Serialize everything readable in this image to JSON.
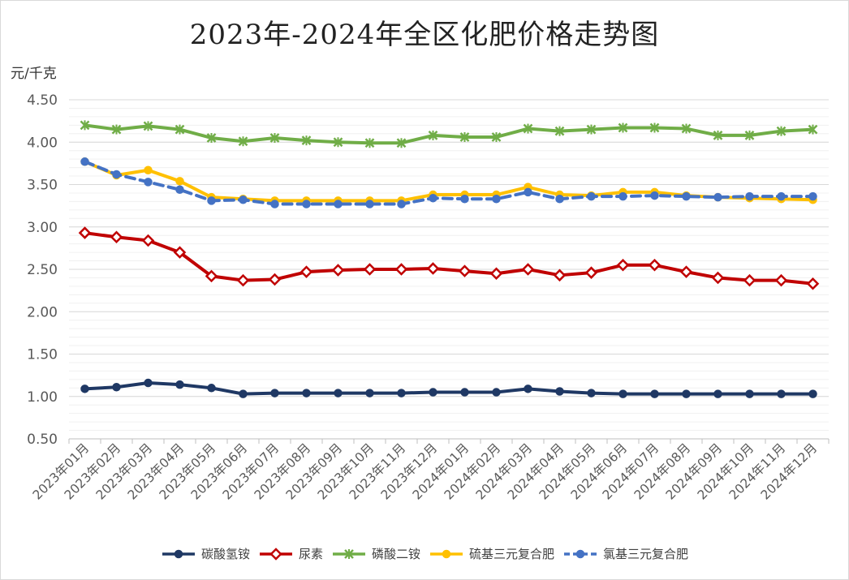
{
  "chart_data": {
    "type": "line",
    "title": "2023年-2024年全区化肥价格走势图",
    "ylabel": "元/千克",
    "xlabel": "",
    "ylim": [
      0.5,
      4.5
    ],
    "ytick_step": 0.5,
    "yticks": [
      "0.50",
      "1.00",
      "1.50",
      "2.00",
      "2.50",
      "3.00",
      "3.50",
      "4.00",
      "4.50"
    ],
    "grid": true,
    "legend_position": "bottom",
    "categories": [
      "2023年01月",
      "2023年02月",
      "2023年03月",
      "2023年04月",
      "2023年05月",
      "2023年06月",
      "2023年07月",
      "2023年08月",
      "2023年09月",
      "2023年10月",
      "2023年11月",
      "2023年12月",
      "2024年01月",
      "2024年02月",
      "2024年03月",
      "2024年04月",
      "2024年05月",
      "2024年06月",
      "2024年07月",
      "2024年08月",
      "2024年09月",
      "2024年10月",
      "2024年11月",
      "2024年12月"
    ],
    "series": [
      {
        "name": "碳酸氢铵",
        "color": "#1f3864",
        "marker": "circle",
        "dash": false,
        "values": [
          1.09,
          1.11,
          1.16,
          1.14,
          1.1,
          1.03,
          1.04,
          1.04,
          1.04,
          1.04,
          1.04,
          1.05,
          1.05,
          1.05,
          1.09,
          1.06,
          1.04,
          1.03,
          1.03,
          1.03,
          1.03,
          1.03,
          1.03,
          1.03
        ]
      },
      {
        "name": "尿素",
        "color": "#c00000",
        "marker": "diamond",
        "dash": false,
        "values": [
          2.93,
          2.88,
          2.84,
          2.7,
          2.42,
          2.37,
          2.38,
          2.47,
          2.49,
          2.5,
          2.5,
          2.51,
          2.48,
          2.45,
          2.5,
          2.43,
          2.46,
          2.55,
          2.55,
          2.47,
          2.4,
          2.37,
          2.37,
          2.33
        ]
      },
      {
        "name": "磷酸二铵",
        "color": "#70ad47",
        "marker": "star",
        "dash": false,
        "values": [
          4.2,
          4.15,
          4.19,
          4.15,
          4.05,
          4.01,
          4.05,
          4.02,
          4.0,
          3.99,
          3.99,
          4.08,
          4.06,
          4.06,
          4.16,
          4.13,
          4.15,
          4.17,
          4.17,
          4.16,
          4.08,
          4.08,
          4.13,
          4.15
        ]
      },
      {
        "name": "硫基三元复合肥",
        "color": "#ffc000",
        "marker": "circle",
        "dash": false,
        "values": [
          3.77,
          3.61,
          3.67,
          3.54,
          3.35,
          3.33,
          3.31,
          3.31,
          3.31,
          3.31,
          3.31,
          3.38,
          3.38,
          3.38,
          3.47,
          3.38,
          3.37,
          3.41,
          3.41,
          3.37,
          3.35,
          3.34,
          3.33,
          3.32
        ]
      },
      {
        "name": "氯基三元复合肥",
        "color": "#4472c4",
        "marker": "circle",
        "dash": true,
        "values": [
          3.77,
          3.62,
          3.53,
          3.44,
          3.31,
          3.32,
          3.27,
          3.27,
          3.27,
          3.27,
          3.27,
          3.34,
          3.33,
          3.33,
          3.41,
          3.33,
          3.36,
          3.36,
          3.37,
          3.36,
          3.35,
          3.36,
          3.36,
          3.36
        ]
      }
    ]
  }
}
